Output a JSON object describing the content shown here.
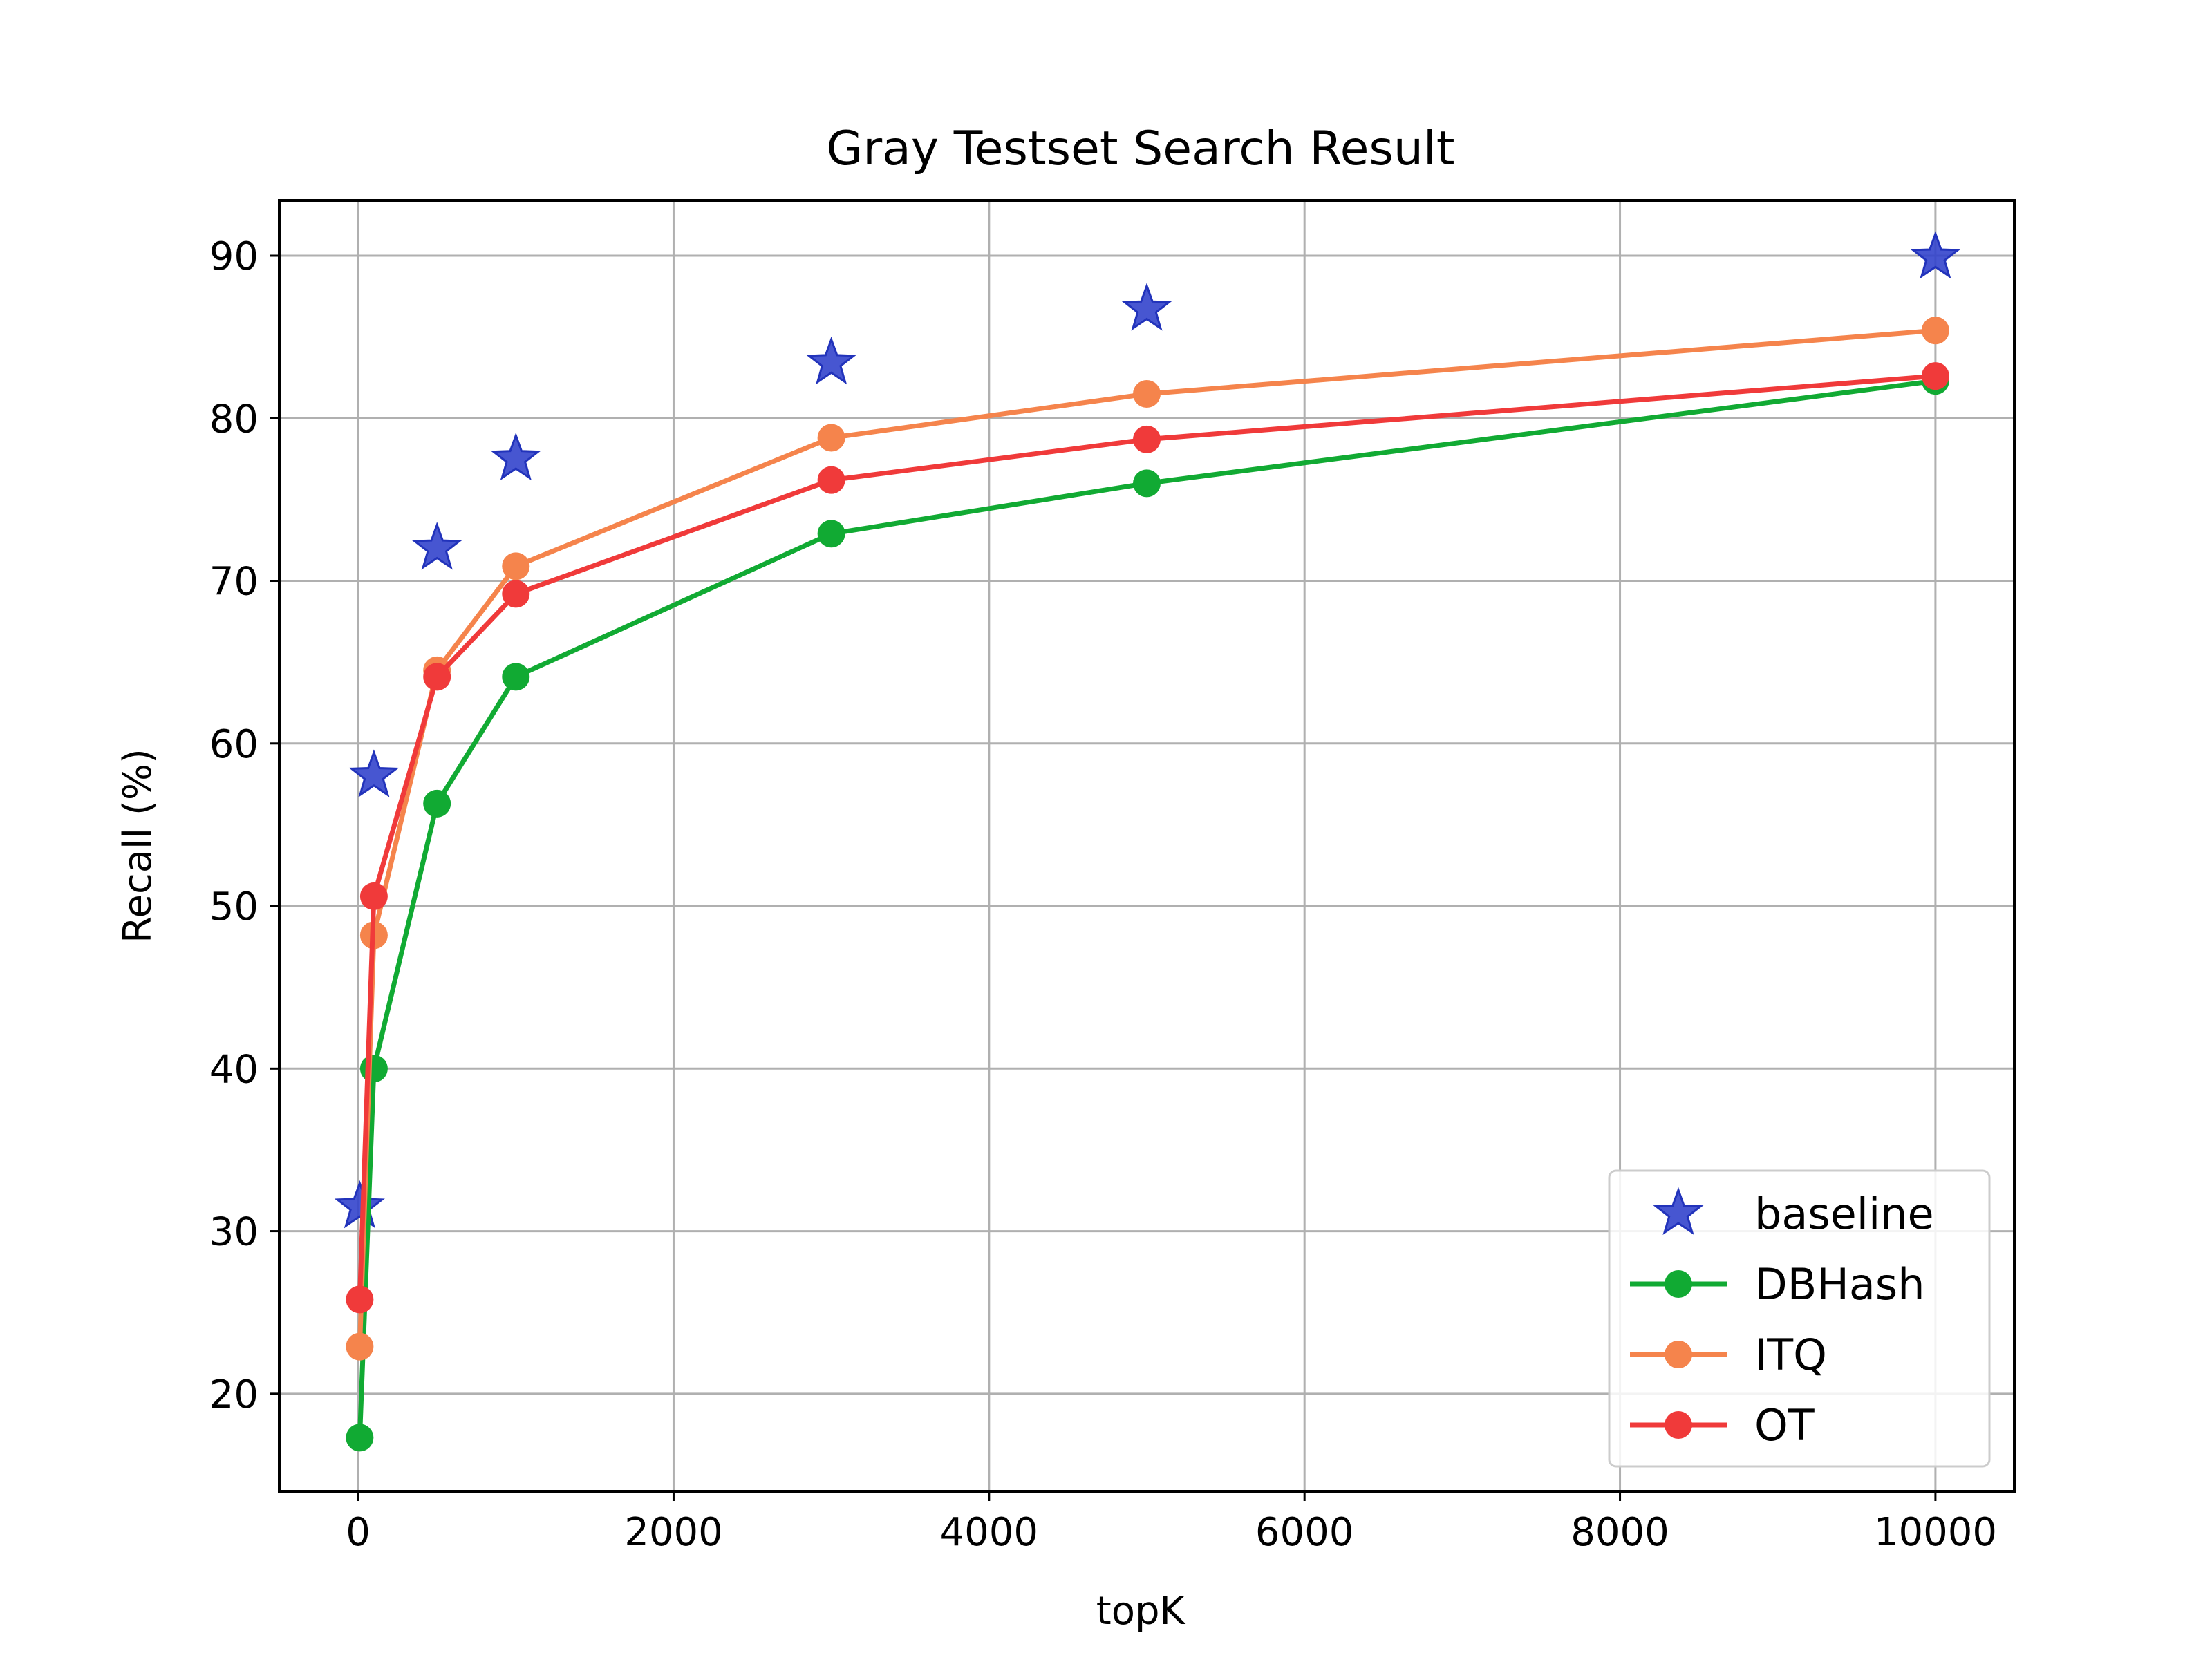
{
  "chart_data": {
    "type": "line",
    "title": "Gray Testset Search Result",
    "xlabel": "topK",
    "ylabel": "Recall (%)",
    "xlim": [
      -500,
      10500
    ],
    "ylim": [
      14,
      93.4
    ],
    "xticks": [
      0,
      2000,
      4000,
      6000,
      8000,
      10000
    ],
    "xtick_labels": [
      "0",
      "2000",
      "4000",
      "6000",
      "8000",
      "10000"
    ],
    "yticks": [
      20,
      30,
      40,
      50,
      60,
      70,
      80,
      90
    ],
    "ytick_labels": [
      "20",
      "30",
      "40",
      "50",
      "60",
      "70",
      "80",
      "90"
    ],
    "grid": true,
    "legend_position": "lower-right",
    "series": [
      {
        "name": "baseline",
        "style": "star-markers",
        "color": "#3344cc",
        "x": [
          10,
          100,
          500,
          1000,
          3000,
          5000,
          10000
        ],
        "y": [
          31.5,
          58.0,
          72.0,
          77.5,
          83.4,
          86.7,
          89.9
        ]
      },
      {
        "name": "DBHash",
        "style": "line-circle",
        "color": "#11aa33",
        "x": [
          10,
          100,
          500,
          1000,
          3000,
          5000,
          10000
        ],
        "y": [
          17.3,
          40.0,
          56.3,
          64.1,
          72.9,
          76.0,
          82.3
        ]
      },
      {
        "name": "ITQ",
        "style": "line-circle",
        "color": "#f5844c",
        "x": [
          10,
          100,
          500,
          1000,
          3000,
          5000,
          10000
        ],
        "y": [
          22.9,
          48.2,
          64.5,
          70.9,
          78.8,
          81.5,
          85.4
        ]
      },
      {
        "name": "OT",
        "style": "line-circle",
        "color": "#f03a3a",
        "x": [
          10,
          100,
          500,
          1000,
          3000,
          5000,
          10000
        ],
        "y": [
          25.8,
          50.6,
          64.1,
          69.2,
          76.2,
          78.7,
          82.6
        ]
      }
    ]
  }
}
